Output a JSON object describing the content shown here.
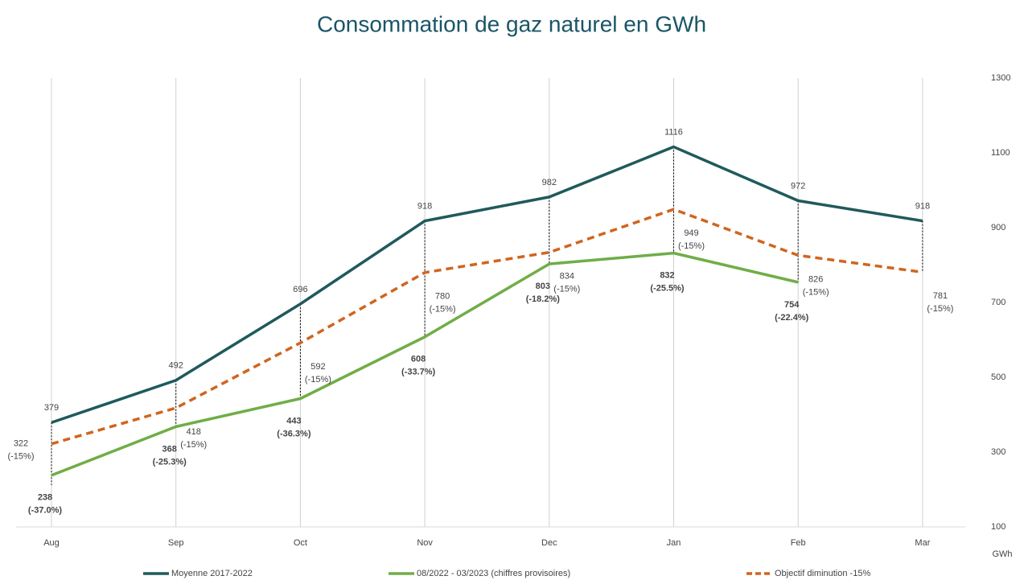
{
  "chart_data": {
    "type": "line",
    "title": "Consommation de gaz naturel en GWh",
    "categories": [
      "Aug",
      "Sep",
      "Oct",
      "Nov",
      "Dec",
      "Jan",
      "Feb",
      "Mar"
    ],
    "series": [
      {
        "name": "Moyenne 2017-2022",
        "color": "#1f5a5c",
        "dash": false,
        "bold_labels": false,
        "values": [
          379,
          492,
          696,
          918,
          982,
          1116,
          972,
          918
        ]
      },
      {
        "name": "08/2022 - 03/2023 (chiffres provisoires)",
        "color": "#70ad47",
        "dash": false,
        "bold_labels": true,
        "values": [
          238,
          368,
          443,
          608,
          803,
          832,
          754,
          null
        ],
        "change_labels": [
          "(-37.0%)",
          "(-25.3%)",
          "(-36.3%)",
          "(-33.7%)",
          "(-18.2%)",
          "(-25.5%)",
          "(-22.4%)",
          null
        ]
      },
      {
        "name": "Objectif diminution -15%",
        "color": "#d0651f",
        "dash": true,
        "bold_labels": false,
        "values": [
          322,
          418,
          592,
          780,
          834,
          949,
          826,
          781
        ],
        "change_labels": [
          "(-15%)",
          "(-15%)",
          "(-15%)",
          "(-15%)",
          "(-15%)",
          "(-15%)",
          "(-15%)",
          "(-15%)"
        ]
      }
    ],
    "y_axis_label": "GWh",
    "ylim": [
      100,
      1300
    ],
    "yticks": [
      100,
      300,
      500,
      700,
      900,
      1100,
      1300
    ],
    "grid": "vertical",
    "legend": "bottom"
  }
}
